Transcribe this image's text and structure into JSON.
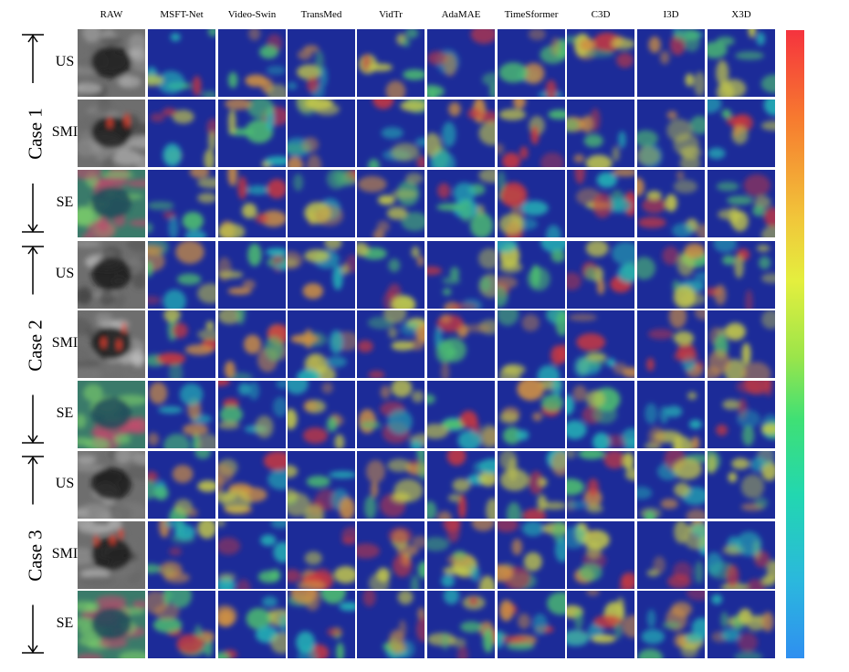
{
  "columns": [
    "RAW",
    "MSFT-Net",
    "Video-Swin",
    "TransMed",
    "VidTr",
    "AdaMAE",
    "TimeSformer",
    "C3D",
    "I3D",
    "X3D"
  ],
  "cases": [
    {
      "label": "Case 1",
      "modalities": [
        "US",
        "SMI",
        "SE"
      ]
    },
    {
      "label": "Case 2",
      "modalities": [
        "US",
        "SMI",
        "SE"
      ]
    },
    {
      "label": "Case 3",
      "modalities": [
        "US",
        "SMI",
        "SE"
      ]
    }
  ],
  "colors": {
    "heat_low": "#1b2a9c",
    "heat_mid": "#2fd7b8",
    "heat_high": "#f03a2e",
    "colorbar_top": "#f5333e",
    "colorbar_bottom": "#2f8ff0"
  }
}
